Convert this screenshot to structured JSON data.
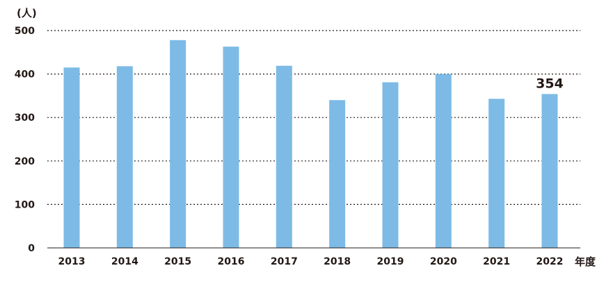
{
  "chart_data": {
    "type": "bar",
    "y_unit": "(人)",
    "x_unit": "年度",
    "categories": [
      "2013",
      "2014",
      "2015",
      "2016",
      "2017",
      "2018",
      "2019",
      "2020",
      "2021",
      "2022"
    ],
    "values": [
      415,
      418,
      478,
      463,
      419,
      340,
      381,
      400,
      343,
      354
    ],
    "y_ticks": [
      "0",
      "100",
      "200",
      "300",
      "400",
      "500"
    ],
    "ylim": [
      0,
      500
    ],
    "grid": "horizontal-dotted",
    "bar_color": "#7dbbe6",
    "annotation": {
      "category": "2022",
      "text": "354"
    }
  }
}
